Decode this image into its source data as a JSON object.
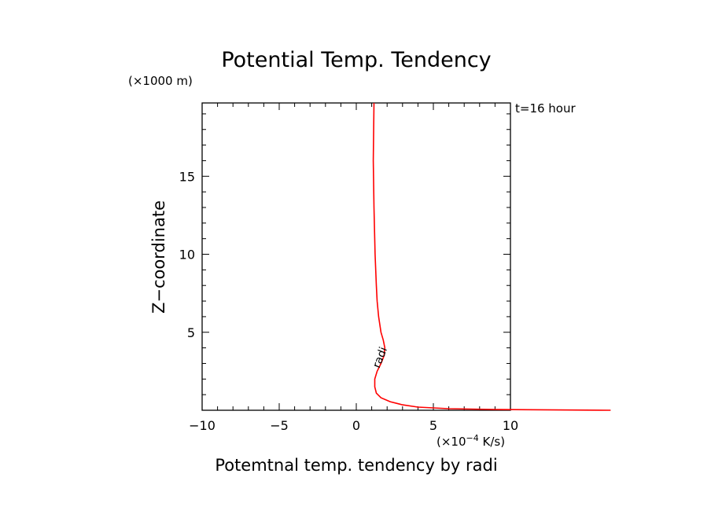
{
  "chart_data": {
    "type": "line",
    "title": "Potential Temp. Tendency",
    "y_unit": "(×1000 m)",
    "ylabel": "Z−coordinate",
    "xlabel": "Potemtnal temp. tendency by radi",
    "x_unit_prefix": "(×10",
    "x_unit_exp": "−4",
    "x_unit_suffix": " K/s)",
    "time_label": "t=16 hour",
    "xlim": [
      -10,
      10
    ],
    "ylim": [
      0,
      19.7
    ],
    "x_ticks": [
      -10,
      -5,
      0,
      5,
      10
    ],
    "x_tick_labels": [
      "−10",
      "−5",
      "0",
      "5",
      "10"
    ],
    "y_ticks": [
      5,
      10,
      15
    ],
    "y_tick_labels": [
      "5",
      "10",
      "15"
    ],
    "series": [
      {
        "name": "radi",
        "color": "#ff0000",
        "points": [
          [
            16.5,
            0.0
          ],
          [
            9.0,
            0.05
          ],
          [
            6.0,
            0.1
          ],
          [
            4.0,
            0.2
          ],
          [
            3.0,
            0.35
          ],
          [
            2.2,
            0.55
          ],
          [
            1.6,
            0.8
          ],
          [
            1.3,
            1.1
          ],
          [
            1.2,
            1.5
          ],
          [
            1.2,
            2.0
          ],
          [
            1.35,
            2.5
          ],
          [
            1.6,
            3.0
          ],
          [
            1.8,
            3.5
          ],
          [
            1.85,
            4.0
          ],
          [
            1.75,
            4.5
          ],
          [
            1.6,
            5.0
          ],
          [
            1.45,
            6.0
          ],
          [
            1.35,
            7.0
          ],
          [
            1.3,
            8.0
          ],
          [
            1.22,
            10.0
          ],
          [
            1.15,
            13.0
          ],
          [
            1.1,
            16.0
          ],
          [
            1.15,
            19.7
          ]
        ]
      }
    ],
    "contour_label": {
      "text": "radi",
      "x": 1.75,
      "y": 3.3
    }
  }
}
